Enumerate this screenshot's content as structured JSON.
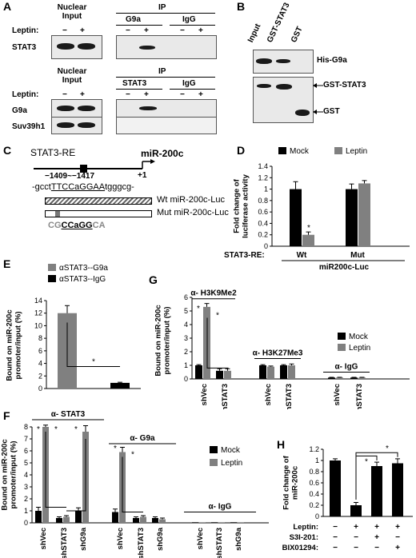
{
  "panels": [
    "A",
    "B",
    "C",
    "D",
    "E",
    "F",
    "G",
    "H"
  ],
  "panel_a": {
    "top": {
      "nuclear_input": "Nuclear\nInput",
      "ip": "IP",
      "col1": "G9a",
      "col2": "IgG",
      "leptin": "Leptin:",
      "signs": [
        "−",
        "+",
        "−",
        "+",
        "−",
        "+"
      ],
      "row": "STAT3"
    },
    "bottom": {
      "nuclear_input": "Nuclear\nInput",
      "ip": "IP",
      "col1": "STAT3",
      "col2": "IgG",
      "leptin": "Leptin:",
      "signs": [
        "−",
        "+",
        "−",
        "+",
        "−",
        "+"
      ],
      "rows": [
        "G9a",
        "Suv39h1"
      ]
    }
  },
  "panel_b": {
    "lanes": [
      "Input",
      "GST-STAT3",
      "GST"
    ],
    "rows": [
      "His-G9a",
      "GST-STAT3",
      "GST"
    ]
  },
  "panel_c": {
    "element": "STAT3-RE",
    "gene": "miR-200c",
    "position": "−1409~−1417",
    "tss": "+1",
    "seq_prefix": "-gcct",
    "seq_site": "TTCCaGGAA",
    "seq_suffix": "tgggcg-",
    "wt_label": "Wt miR-200c-Luc",
    "mut_label": "Mut miR-200c-Luc",
    "mut_seq_a": "CG",
    "mut_seq_b": "CCaGG",
    "mut_seq_c": "CA"
  },
  "panel_d": {
    "chart_data": {
      "type": "bar",
      "ylabel": "Fold change of\nluciferase activity",
      "ylim": [
        0,
        1.4
      ],
      "yticks": [
        "0",
        "0.2",
        "0.4",
        "0.6",
        "0.8",
        "1",
        "1.2",
        "1.4"
      ],
      "legend": [
        "Mock",
        "Leptin"
      ],
      "group_prefix": "STAT3-RE:",
      "categories": [
        "Wt",
        "Mut"
      ],
      "xlabel": "miR200c-Luc",
      "series": [
        {
          "name": "Mock",
          "values": [
            1.0,
            1.0
          ],
          "err": [
            0.13,
            0.09
          ],
          "color": "#000000"
        },
        {
          "name": "Leptin",
          "values": [
            0.2,
            1.1
          ],
          "err": [
            0.05,
            0.05
          ],
          "color": "#808080"
        }
      ],
      "star": "*"
    }
  },
  "panel_e": {
    "chart_data": {
      "type": "bar",
      "ylabel": "Bound on miR-200c\npromoter/input (%)",
      "ylim": [
        0,
        14
      ],
      "yticks": [
        "0",
        "2",
        "4",
        "6",
        "8",
        "10",
        "12",
        "14"
      ],
      "legend": [
        "αSTAT3--G9a",
        "αSTAT3--IgG"
      ],
      "values": [
        12.0,
        0.9
      ],
      "err": [
        1.2,
        0.1
      ],
      "colors": [
        "#808080",
        "#000000"
      ],
      "star": "*"
    }
  },
  "panel_f": {
    "chart_data": {
      "type": "bar",
      "ylabel": "Bound on miR-200c\npromoter/input (%)",
      "ylim": [
        0,
        8
      ],
      "yticks": [
        "0",
        "1",
        "2",
        "3",
        "4",
        "5",
        "6",
        "7",
        "8"
      ],
      "legend": [
        "Mock",
        "Leptin"
      ],
      "groups": [
        "α- STAT3",
        "α- G9a",
        "α- IgG"
      ],
      "categories": [
        "shVec",
        "shSTAT3",
        "shG9a",
        "shVec",
        "shSTAT3",
        "shG9a",
        "shVec",
        "shSTAT3",
        "shG9a"
      ],
      "series": [
        {
          "name": "Mock",
          "values": [
            1.0,
            0.4,
            1.0,
            0.9,
            0.4,
            0.4,
            0.05,
            0.05,
            0.05
          ],
          "color": "#000000"
        },
        {
          "name": "Leptin",
          "values": [
            8.0,
            0.5,
            7.6,
            5.9,
            0.5,
            0.3,
            0.05,
            0.05,
            0.05
          ],
          "color": "#808080"
        }
      ],
      "err": [
        [
          0.3,
          0.1,
          0.25,
          0.25,
          0.1,
          0.1,
          0,
          0,
          0
        ],
        [
          0.15,
          0.1,
          0.5,
          0.4,
          0.1,
          0.1,
          0,
          0,
          0
        ]
      ],
      "star": "*"
    }
  },
  "panel_g": {
    "chart_data": {
      "type": "bar",
      "ylabel": "Bound on miR-200c\npromoter/input (%)",
      "ylim": [
        0,
        6
      ],
      "yticks": [
        "0",
        "1",
        "2",
        "3",
        "4",
        "5",
        "6"
      ],
      "legend": [
        "Mock",
        "Leptin"
      ],
      "groups": [
        "α- H3K9Me2",
        "α- H3K27Me3",
        "α- IgG"
      ],
      "categories": [
        "shVec",
        "shSTAT3",
        "shVec",
        "shSTAT3",
        "shVec",
        "shSTAT3"
      ],
      "series": [
        {
          "name": "Mock",
          "values": [
            1.0,
            0.6,
            1.0,
            1.0,
            0.1,
            0.1
          ],
          "color": "#000000"
        },
        {
          "name": "Leptin",
          "values": [
            5.3,
            0.6,
            0.9,
            1.0,
            0.1,
            0.1
          ],
          "color": "#808080"
        }
      ],
      "err": [
        [
          0.05,
          0.15,
          0.05,
          0.05,
          0.02,
          0.02
        ],
        [
          0.25,
          0.15,
          0.05,
          0.1,
          0.02,
          0.02
        ]
      ],
      "star": "*"
    }
  },
  "panel_h": {
    "chart_data": {
      "type": "bar",
      "ylabel": "Fold change of\nmiR-200c",
      "ylim": [
        0,
        1.2
      ],
      "yticks": [
        "0",
        "0.2",
        "0.4",
        "0.6",
        "0.8",
        "1",
        "1.2"
      ],
      "values": [
        1.0,
        0.2,
        0.9,
        0.95
      ],
      "err": [
        0.03,
        0.05,
        0.07,
        0.08
      ],
      "color": "#000000",
      "treatments": [
        {
          "label": "Leptin:",
          "signs": [
            "−",
            "+",
            "+",
            "+"
          ]
        },
        {
          "label": "S3I-201:",
          "signs": [
            "−",
            "−",
            "+",
            "−"
          ]
        },
        {
          "label": "BIX01294:",
          "signs": [
            "−",
            "−",
            "−",
            "+"
          ]
        }
      ],
      "star": "*"
    }
  }
}
